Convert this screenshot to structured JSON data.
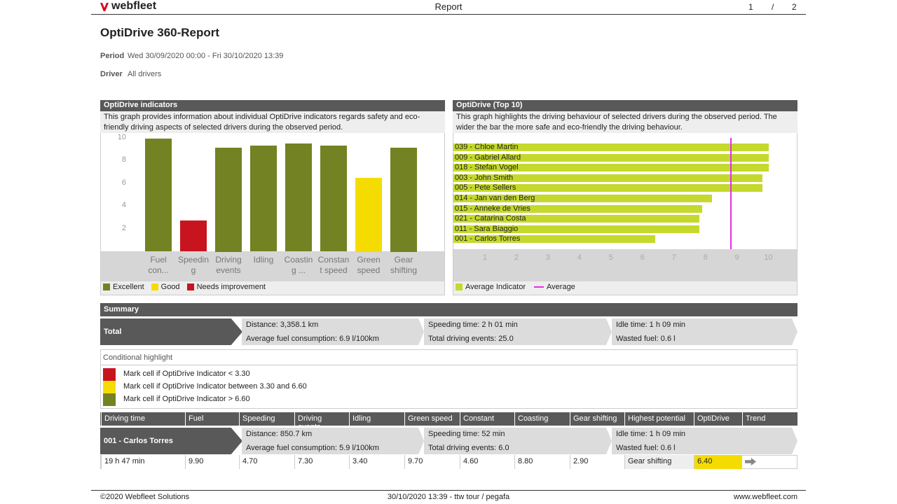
{
  "header": {
    "logo": "webfleet",
    "title": "Report",
    "page": "1",
    "separator": "/",
    "pages": "2"
  },
  "report_title": "OptiDrive 360-Report",
  "period": {
    "label": "Period",
    "value": "Wed 30/09/2020 00:00 - Fri 30/10/2020 13:39"
  },
  "driver": {
    "label": "Driver",
    "value": "All drivers"
  },
  "chart_data": [
    {
      "type": "bar",
      "title": "OptiDrive indicators",
      "description": "This graph provides information about individual OptiDrive indicators regards safety and eco-friendly driving aspects of selected drivers during the observed period.",
      "categories": [
        "Fuel con...",
        "Speeding",
        "Driving events",
        "Idling",
        "Coasting ...",
        "Constant speed",
        "Green speed",
        "Gear shifting"
      ],
      "values": [
        9.9,
        2.7,
        9.1,
        9.3,
        9.5,
        9.3,
        6.5,
        9.1
      ],
      "colors": [
        "#738223",
        "#c8141e",
        "#738223",
        "#738223",
        "#738223",
        "#738223",
        "#f5dc00",
        "#738223"
      ],
      "ylim": [
        0,
        10.4
      ],
      "yticks": [
        2,
        4,
        6,
        8,
        10
      ],
      "legend": [
        {
          "name": "Excellent",
          "color": "#738223"
        },
        {
          "name": "Good",
          "color": "#f5dc00"
        },
        {
          "name": "Needs improvement",
          "color": "#c8141e"
        }
      ]
    },
    {
      "type": "hbar",
      "title": "OptiDrive (Top 10)",
      "description": "This graph highlights the driving behaviour of selected drivers during the observed period. The wider the bar the more safe and eco-friendly the driving behaviour.",
      "categories": [
        "039 - Chloe Martin",
        "009 - Gabriel Allard",
        "018 - Stefan Vogel",
        "003 - John Smith",
        "005 - Pete Sellers",
        "014 - Jan van den Berg",
        "015 - Anneke de Vries",
        "021 - Catarina Costa",
        "011 - Sara Biaggio",
        "001 - Carlos Torres"
      ],
      "series": [
        {
          "name": "Average Indicator",
          "color": "#c5d92d",
          "values": [
            10.0,
            10.0,
            10.0,
            9.8,
            9.8,
            8.2,
            7.9,
            7.8,
            7.8,
            6.4
          ]
        }
      ],
      "average": {
        "name": "Average",
        "value": 8.8,
        "color": "#e030e0"
      },
      "xlim": [
        0,
        10.9
      ],
      "xticks": [
        1,
        2,
        3,
        4,
        5,
        6,
        7,
        8,
        9,
        10
      ]
    }
  ],
  "summary": {
    "title": "Summary",
    "label": "Total",
    "cells": [
      [
        "Distance: 3,358.1 km",
        "Average fuel consumption: 6.9 l/100km"
      ],
      [
        "Speeding time: 2 h 01 min",
        "Total driving events: 25.0"
      ],
      [
        "Idle time: 1 h 09 min",
        "Wasted fuel: 0.6 l"
      ]
    ]
  },
  "highlight": {
    "title": "Conditional highlight",
    "rules": [
      {
        "color": "#c8141e",
        "text": "Mark cell if OptiDrive Indicator < 3.30"
      },
      {
        "color": "#f5dc00",
        "text": "Mark cell if OptiDrive Indicator between 3.30 and 6.60"
      },
      {
        "color": "#738223",
        "text": "Mark cell if OptiDrive Indicator > 6.60"
      }
    ]
  },
  "table": {
    "columns": [
      "Driving time",
      "Fuel",
      "Speeding",
      "Driving events",
      "Idling",
      "Green speed",
      "Constant",
      "Coasting",
      "Gear shifting",
      "Highest potential",
      "OptiDrive",
      "Trend"
    ],
    "driver": {
      "label": "001 - Carlos Torres",
      "cells": [
        [
          "Distance: 850.7 km",
          "Average fuel consumption: 5.9 l/100km"
        ],
        [
          "Speeding time: 52 min",
          "Total driving events: 6.0"
        ],
        [
          "Idle time: 1 h 09 min",
          "Wasted fuel: 0.6 l"
        ]
      ]
    },
    "row": [
      "19 h 47 min",
      "9.90",
      "4.70",
      "7.30",
      "3.40",
      "9.70",
      "4.60",
      "8.80",
      "2.90",
      "Gear shifting",
      "6.40"
    ],
    "optidrive_color": "#f5dc00"
  },
  "footer": {
    "left": "©2020 Webfleet Solutions",
    "center": "30/10/2020 13:39 - ttw tour / pegafa",
    "right": "www.webfleet.com"
  }
}
